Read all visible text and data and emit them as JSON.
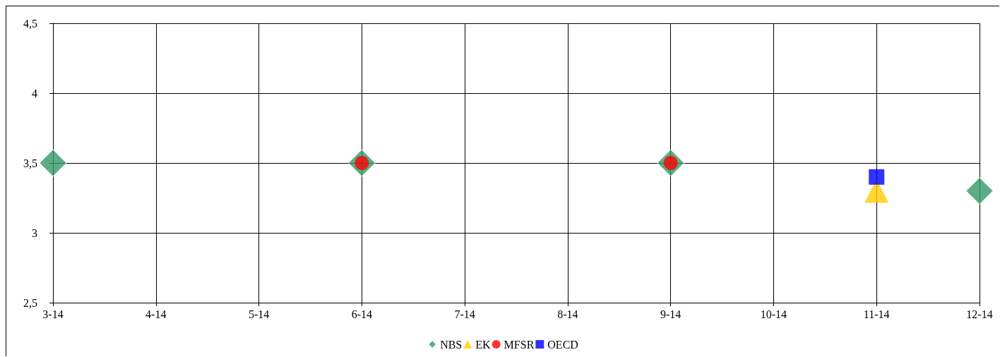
{
  "chart_data": {
    "type": "scatter",
    "categories": [
      "3-14",
      "4-14",
      "5-14",
      "6-14",
      "7-14",
      "8-14",
      "9-14",
      "10-14",
      "11-14",
      "12-14"
    ],
    "series": [
      {
        "name": "NBS",
        "color": "#339966",
        "marker": "diamond",
        "values": [
          3.5,
          null,
          null,
          3.5,
          null,
          null,
          3.5,
          null,
          null,
          3.3
        ]
      },
      {
        "name": "EK",
        "color": "#ffcc00",
        "marker": "triangle",
        "values": [
          null,
          null,
          null,
          null,
          null,
          null,
          null,
          null,
          3.3,
          null
        ]
      },
      {
        "name": "MFSR",
        "color": "#ff0000",
        "marker": "circle",
        "values": [
          null,
          null,
          null,
          3.5,
          null,
          null,
          3.5,
          null,
          null,
          null
        ]
      },
      {
        "name": "OECD",
        "color": "#0000ff",
        "marker": "square",
        "values": [
          null,
          null,
          null,
          null,
          null,
          null,
          null,
          null,
          3.4,
          null
        ]
      }
    ],
    "ylim": [
      2.5,
      4.5
    ],
    "yticks": [
      {
        "value": 2.5,
        "label": "2,5"
      },
      3,
      {
        "value": 3.5,
        "label": "3,5"
      },
      4,
      {
        "value": 4.5,
        "label": "4,5"
      }
    ],
    "grid": true,
    "legend": "bottom"
  }
}
